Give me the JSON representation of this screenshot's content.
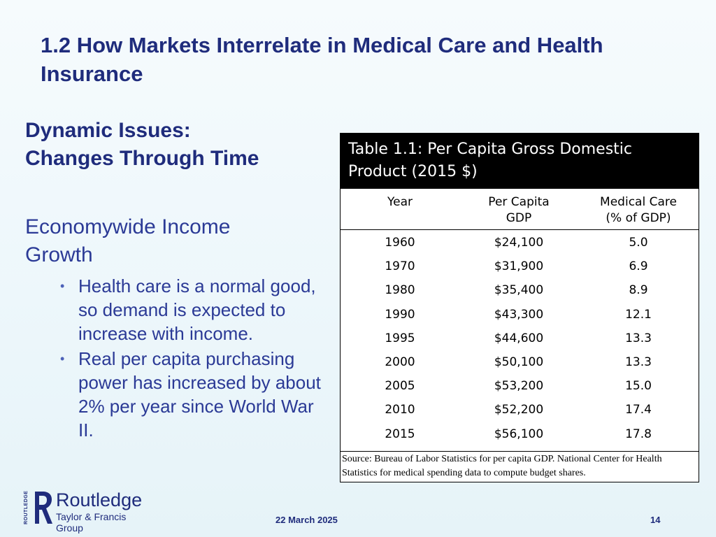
{
  "slide": {
    "title": "1.2  How Markets Interrelate in Medical Care and Health Insurance",
    "subtitle_line1": "Dynamic Issues:",
    "subtitle_line2": "Changes Through Time",
    "section_line1": "Economywide Income",
    "section_line2": "Growth",
    "bullets": [
      "Health care is a normal good, so demand is expected to increase with income.",
      "Real per capita purchasing power has increased by about 2% per year since World War II."
    ]
  },
  "table": {
    "caption_line1": "Table 1.1:  Per Capita Gross Domestic",
    "caption_line2": "Product (2015 $)",
    "col_year": "Year",
    "col_gdp_line1": "Per Capita",
    "col_gdp_line2": "GDP",
    "col_med_line1": "Medical Care",
    "col_med_line2": "(% of GDP)",
    "rows": [
      {
        "year": "1960",
        "gdp": "$24,100",
        "med": "5.0"
      },
      {
        "year": "1970",
        "gdp": "$31,900",
        "med": "6.9"
      },
      {
        "year": "1980",
        "gdp": "$35,400",
        "med": "8.9"
      },
      {
        "year": "1990",
        "gdp": "$43,300",
        "med": "12.1"
      },
      {
        "year": "1995",
        "gdp": "$44,600",
        "med": "13.3"
      },
      {
        "year": "2000",
        "gdp": "$50,100",
        "med": "13.3"
      },
      {
        "year": "2005",
        "gdp": "$53,200",
        "med": "15.0"
      },
      {
        "year": "2010",
        "gdp": "$52,200",
        "med": "17.4"
      },
      {
        "year": "2015",
        "gdp": "$56,100",
        "med": "17.8"
      }
    ],
    "source": "Source:  Bureau of Labor Statistics for per capita GDP.  National Center for Health Statistics for medical spending data to compute budget shares."
  },
  "footer": {
    "logo_name": "Routledge",
    "logo_group": "Taylor & Francis Group",
    "logo_side": "ROUTLEDGE",
    "date": "22 March 2025",
    "page_number": "14"
  },
  "colors": {
    "heading": "#1f2c7c",
    "body_text": "#2b3a96",
    "table_header_bg": "#000000"
  }
}
